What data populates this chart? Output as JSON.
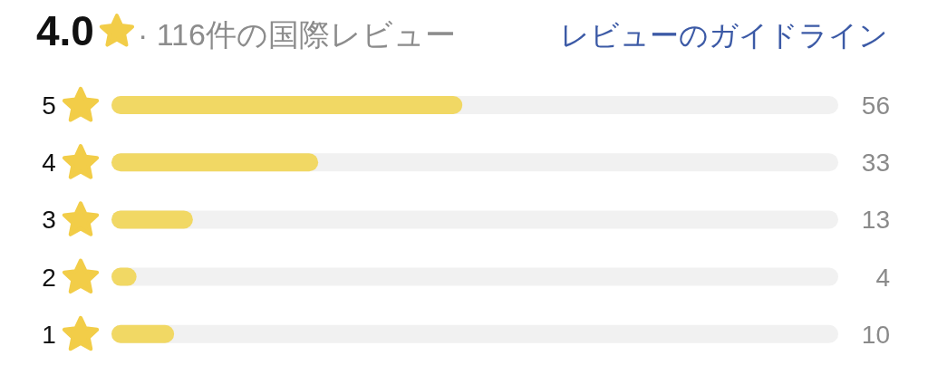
{
  "chart_data": {
    "type": "bar",
    "orientation": "horizontal",
    "title": "4.0",
    "subtitle": "· 116件の国際レビュー",
    "annotations": [
      "レビューのガイドライン"
    ],
    "categories": [
      "5",
      "4",
      "3",
      "2",
      "1"
    ],
    "values": [
      56,
      33,
      13,
      4,
      10
    ],
    "color": "#f1d864",
    "xlim": [
      0,
      116
    ],
    "data_labels": true,
    "tick_labels": "y"
  }
}
